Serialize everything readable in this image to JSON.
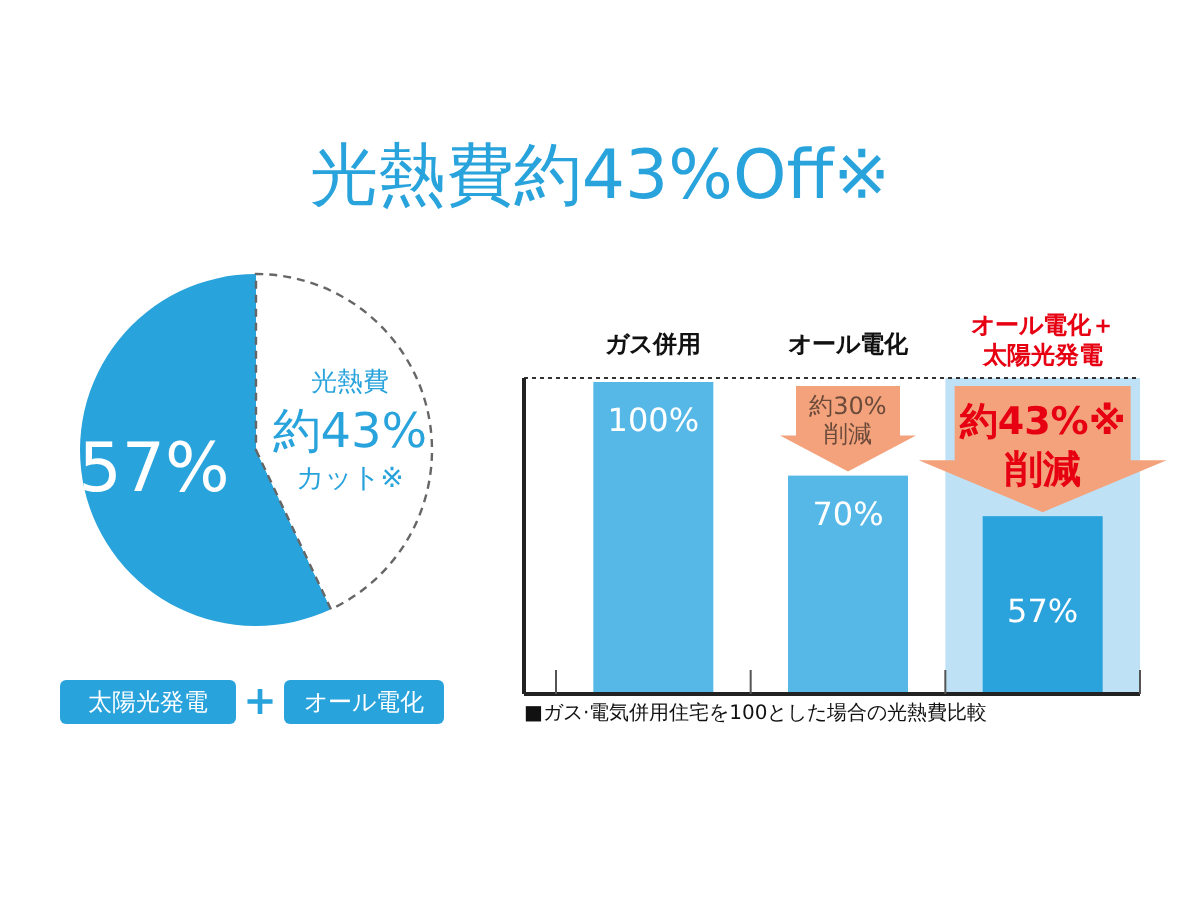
{
  "chart_data": [
    {
      "type": "pie",
      "title": "光熱費約43%Off※",
      "categories": [
        null,
        null
      ],
      "values": [
        57,
        43
      ],
      "colors": [
        "#29a3dc",
        "#ffffff"
      ],
      "value_labels": [
        "57%",
        null
      ],
      "annotations": [
        "光熱費",
        "約43%",
        "カット※",
        "太陽光発電",
        "+",
        "オール電化"
      ]
    },
    {
      "type": "bar",
      "categories": [
        "ガス併用",
        "オール電化",
        "オール電化＋太陽光発電"
      ],
      "values": [
        100,
        70,
        57
      ],
      "colors": [
        "#56b8e6",
        "#56b8e6",
        "#2aa3dc"
      ],
      "value_labels": [
        "100%",
        "70%",
        "57%"
      ],
      "annotations": [
        "約30%",
        "削減",
        "約43%※",
        "削減",
        "■ガス·電気併用住宅を100とした場合の光熱費比較"
      ]
    }
  ]
}
